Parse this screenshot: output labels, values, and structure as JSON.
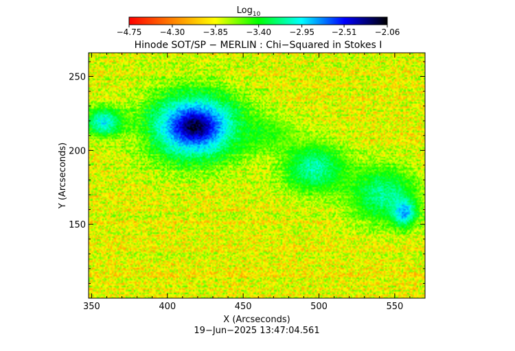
{
  "colorbar": {
    "label_main": "Log",
    "label_sub": "10",
    "ticks": [
      -4.75,
      -4.3,
      -3.85,
      -3.4,
      -2.95,
      -2.51,
      -2.06
    ],
    "tick_labels": [
      "−4.75",
      "−4.30",
      "−3.85",
      "−3.40",
      "−2.95",
      "−2.51",
      "−2.06"
    ],
    "range": [
      -4.75,
      -2.06
    ],
    "colors": [
      "#ff0000",
      "#ff8000",
      "#ffff00",
      "#00ff00",
      "#00ffff",
      "#0000ff",
      "#000000"
    ]
  },
  "chart_data": {
    "type": "heatmap",
    "title": "Hinode SOT/SP − MERLIN : Chi−Squared in Stokes I",
    "xlabel": "X (Arcseconds)",
    "ylabel": "Y (Arcseconds)",
    "xlim": [
      348,
      570
    ],
    "ylim": [
      100,
      266
    ],
    "xticks": [
      350,
      400,
      450,
      500,
      550
    ],
    "yticks": [
      150,
      200,
      250
    ],
    "background_level": -3.85,
    "features": [
      {
        "x": 418,
        "y": 216,
        "rx": 40,
        "ry": 30,
        "peak": -2.51
      },
      {
        "x": 418,
        "y": 216,
        "rx": 12,
        "ry": 9,
        "peak": -2.15
      },
      {
        "x": 358,
        "y": 219,
        "rx": 16,
        "ry": 13,
        "peak": -2.95
      },
      {
        "x": 455,
        "y": 212,
        "rx": 38,
        "ry": 14,
        "peak": -3.4
      },
      {
        "x": 497,
        "y": 188,
        "rx": 28,
        "ry": 22,
        "peak": -3.1
      },
      {
        "x": 542,
        "y": 170,
        "rx": 30,
        "ry": 25,
        "peak": -3.15
      },
      {
        "x": 556,
        "y": 158,
        "rx": 10,
        "ry": 12,
        "peak": -2.8
      }
    ]
  },
  "timestamp": "19−Jun−2025 13:47:04.561"
}
